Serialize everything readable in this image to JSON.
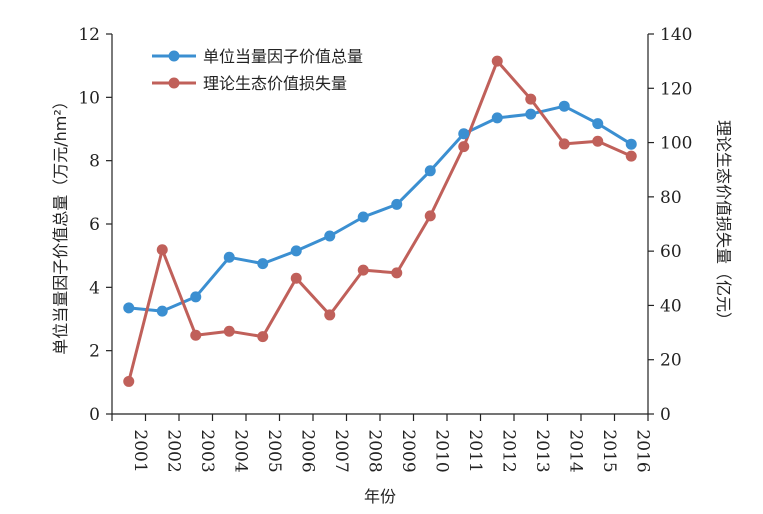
{
  "chart_data": {
    "type": "line",
    "x": [
      "2001",
      "2002",
      "2003",
      "2004",
      "2005",
      "2006",
      "2007",
      "2008",
      "2009",
      "2010",
      "2011",
      "2012",
      "2013",
      "2014",
      "2015",
      "2016"
    ],
    "xlabel": "年份",
    "ylabel_left": "单位当量因子价值总量（万元/hm²）",
    "ylabel_right": "理论生态价值损失量（亿元）",
    "ylim_left": [
      0,
      12
    ],
    "ylim_right": [
      0,
      140
    ],
    "yticks_left": [
      "0",
      "2",
      "4",
      "6",
      "8",
      "10",
      "12"
    ],
    "yticks_right": [
      "0",
      "20",
      "40",
      "60",
      "80",
      "100",
      "120",
      "140"
    ],
    "grid": false,
    "legend_position": "top-left",
    "series": [
      {
        "name": "单位当量因子价值总量",
        "axis": "left",
        "color": "#3b8fd1",
        "values": [
          3.35,
          3.25,
          3.7,
          4.95,
          4.75,
          5.15,
          5.62,
          6.22,
          6.62,
          7.68,
          8.85,
          9.35,
          9.47,
          9.72,
          9.17,
          8.52
        ]
      },
      {
        "name": "理论生态价值损失量",
        "axis": "right",
        "color": "#c0605a",
        "values": [
          12,
          60.5,
          29,
          30.5,
          28.5,
          50,
          36.5,
          53,
          52,
          73,
          98.5,
          130,
          116,
          99.5,
          100.5,
          95
        ]
      }
    ]
  }
}
